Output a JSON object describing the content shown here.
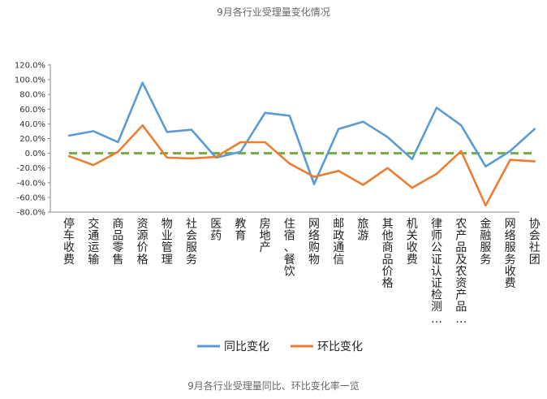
{
  "page": {
    "title": "9月各行业受理量变化情况",
    "caption": "9月各行业受理量同比、环比变化率一览"
  },
  "chart_data": {
    "type": "line",
    "categories": [
      "停车收费",
      "交通运输",
      "商品零售",
      "资源价格",
      "物业管理",
      "社会服务",
      "医药",
      "教育",
      "房地产",
      "住宿、餐饮",
      "网络购物",
      "邮政通信",
      "旅游",
      "其他商品价格",
      "机关收费",
      "律师公证认证检测…",
      "农产品及农资产品…",
      "金融服务",
      "网络服务收费",
      "协会社团"
    ],
    "series": [
      {
        "name": "同比变化",
        "color": "#5b9bd5",
        "values": [
          24,
          30,
          15,
          96,
          29,
          32,
          -6,
          2,
          55,
          51,
          -42,
          33,
          43,
          22,
          -8,
          62,
          38,
          -18,
          3,
          33
        ]
      },
      {
        "name": "环比变化",
        "color": "#ed7d31",
        "values": [
          -4,
          -16,
          2,
          38,
          -6,
          -7,
          -5,
          15,
          15,
          -14,
          -32,
          -24,
          -43,
          -20,
          -47,
          -28,
          3,
          -71,
          -9,
          -11
        ]
      }
    ],
    "reference_line": {
      "value": 0,
      "color": "#70ad47",
      "style": "dashed"
    },
    "yticks": [
      "120.0%",
      "100.0%",
      "80.0%",
      "60.0%",
      "40.0%",
      "20.0%",
      "0.0%",
      "-20.0%",
      "-40.0%",
      "-60.0%",
      "-80.0%"
    ],
    "ylim": [
      -80,
      120
    ],
    "ytick_step": 20,
    "grid": false,
    "legend_position": "bottom"
  }
}
